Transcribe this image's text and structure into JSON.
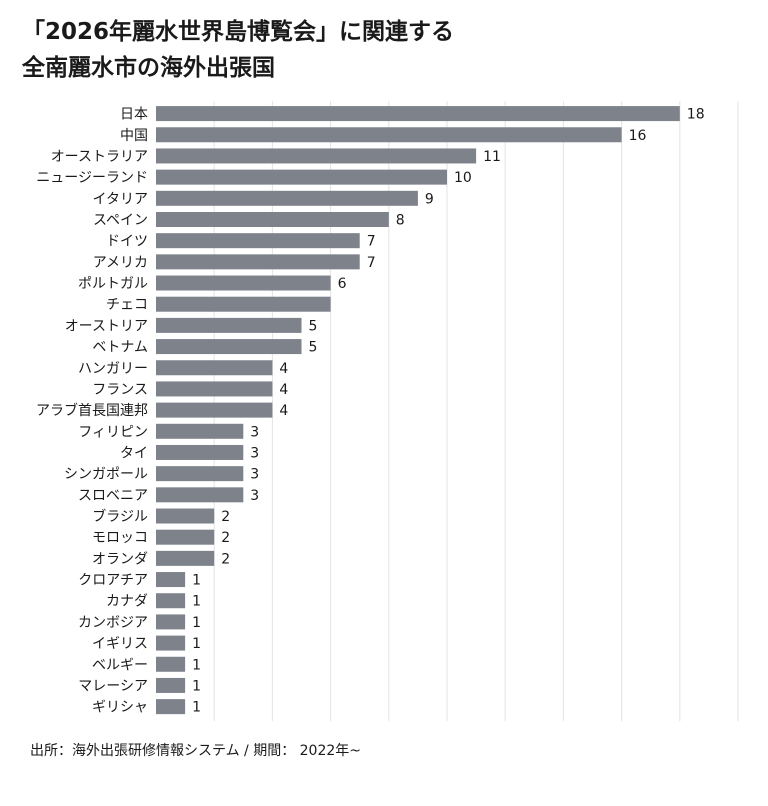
{
  "chart_data": {
    "type": "bar",
    "orientation": "horizontal",
    "title_line1": "「2026年麗水世界島博覧会」に関連する",
    "title_line2": "全南麗水市の海外出張国",
    "categories": [
      "日本",
      "中国",
      "オーストラリア",
      "ニュージーランド",
      "イタリア",
      "スペイン",
      "ドイツ",
      "アメリカ",
      "ポルトガル",
      "チェコ",
      "オーストリア",
      "ベトナム",
      "ハンガリー",
      "フランス",
      "アラブ首長国連邦",
      "フィリピン",
      "タイ",
      "シンガポール",
      "スロベニア",
      "ブラジル",
      "モロッコ",
      "オランダ",
      "クロアチア",
      "カナダ",
      "カンボジア",
      "イギリス",
      "ベルギー",
      "マレーシア",
      "ギリシャ"
    ],
    "values": [
      18,
      16,
      11,
      10,
      9,
      8,
      7,
      7,
      6,
      6,
      5,
      5,
      4,
      4,
      4,
      3,
      3,
      3,
      3,
      2,
      2,
      2,
      1,
      1,
      1,
      1,
      1,
      1,
      1
    ],
    "data_labels": [
      "18",
      "16",
      "11",
      "10",
      "9",
      "8",
      "7",
      "7",
      "6",
      "",
      "5",
      "5",
      "4",
      "4",
      "4",
      "3",
      "3",
      "3",
      "3",
      "2",
      "2",
      "2",
      "1",
      "1",
      "1",
      "1",
      "1",
      "1",
      "1"
    ],
    "xlim": [
      0,
      20
    ],
    "grid": true,
    "bar_color": "#7d828b",
    "grid_color": "#e3e3e3"
  },
  "source": "出所：海外出張研修情報システム / 期間： 2022年~"
}
